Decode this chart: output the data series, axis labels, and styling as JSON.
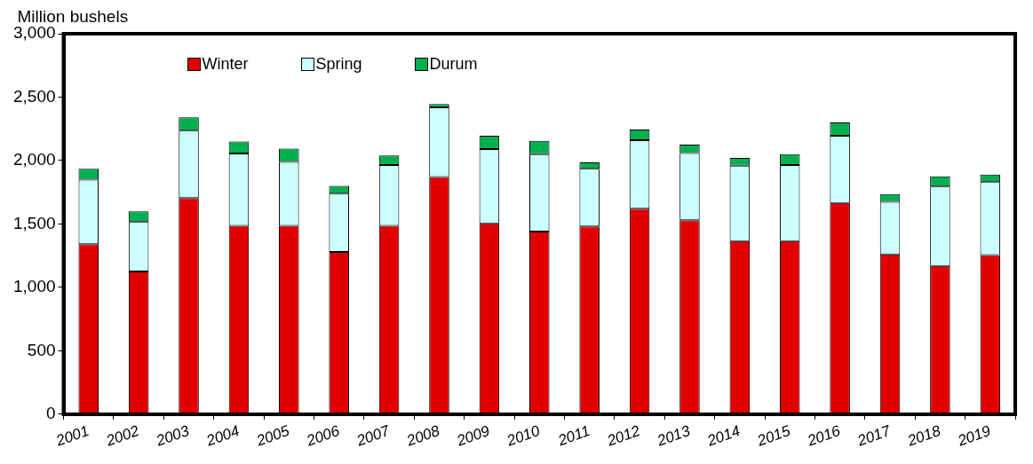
{
  "chart_data": {
    "type": "bar",
    "ylabel": "Million bushels",
    "stacked": true,
    "legend": "top",
    "grid": false,
    "categories": [
      "2001",
      "2002",
      "2003",
      "2004",
      "2005",
      "2006",
      "2007",
      "2008",
      "2009",
      "2010",
      "2011",
      "2012",
      "2013",
      "2014",
      "2015",
      "2016",
      "2017",
      "2018",
      "2019"
    ],
    "series": [
      {
        "name": "Winter",
        "color": "#e00000",
        "values": [
          1340,
          1125,
          1705,
          1485,
          1485,
          1280,
          1485,
          1870,
          1505,
          1440,
          1480,
          1620,
          1530,
          1365,
          1365,
          1665,
          1260,
          1170,
          1255
        ]
      },
      {
        "name": "Spring",
        "color": "#ccffff",
        "values": [
          510,
          390,
          530,
          570,
          505,
          460,
          480,
          550,
          585,
          610,
          455,
          540,
          530,
          595,
          600,
          530,
          415,
          625,
          575
        ]
      },
      {
        "name": "Durum",
        "color": "#00b050",
        "values": [
          85,
          85,
          105,
          95,
          105,
          60,
          75,
          25,
          105,
          105,
          50,
          85,
          65,
          60,
          85,
          105,
          60,
          80,
          60
        ]
      }
    ],
    "ylim": [
      0,
      3000
    ],
    "yticks": [
      {
        "value": 0,
        "label": "0"
      },
      {
        "value": 500,
        "label": "500"
      },
      {
        "value": 1000,
        "label": "1,000"
      },
      {
        "value": 1500,
        "label": "1,500"
      },
      {
        "value": 2000,
        "label": "2,000"
      },
      {
        "value": 2500,
        "label": "2,500"
      },
      {
        "value": 3000,
        "label": "3,000"
      }
    ]
  }
}
